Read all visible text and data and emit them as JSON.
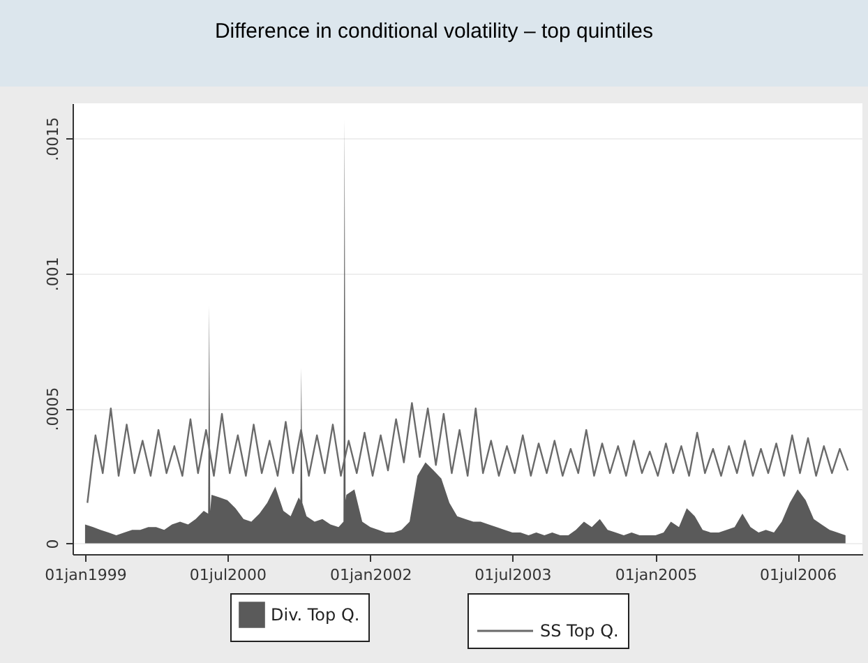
{
  "chart_data": {
    "type": "line",
    "title": "Difference in conditional volatility – top quintiles",
    "xlim": [
      "1998-11-14",
      "2007-03-07"
    ],
    "xticks": [
      {
        "value": "1999-01-01",
        "label": "01jan1999"
      },
      {
        "value": "2000-07-01",
        "label": "01jul2000"
      },
      {
        "value": "2002-01-01",
        "label": "01jan2002"
      },
      {
        "value": "2003-07-01",
        "label": "01jul2003"
      },
      {
        "value": "2005-01-01",
        "label": "01jan2005"
      },
      {
        "value": "2006-07-01",
        "label": "01jul2006"
      }
    ],
    "ylim": [
      -4e-05,
      0.00163
    ],
    "yticks": [
      {
        "value": 0,
        "label": "0"
      },
      {
        "value": 0.0005,
        "label": ".0005"
      },
      {
        "value": 0.001,
        "label": ".001"
      },
      {
        "value": 0.0015,
        "label": ".0015"
      }
    ],
    "grid": "y",
    "legend": "bottom",
    "series": [
      {
        "name": "Div. Top Q.",
        "type": "area",
        "color": "#5a5a5a",
        "x": [
          "1999-01-01",
          "1999-02-01",
          "1999-03-01",
          "1999-04-01",
          "1999-05-01",
          "1999-06-01",
          "1999-07-01",
          "1999-08-01",
          "1999-09-01",
          "1999-10-01",
          "1999-11-01",
          "1999-12-01",
          "2000-01-01",
          "2000-02-01",
          "2000-03-01",
          "2000-04-01",
          "2000-04-18",
          "2000-04-22",
          "2000-04-26",
          "2000-05-01",
          "2000-06-01",
          "2000-07-01",
          "2000-08-01",
          "2000-09-01",
          "2000-10-01",
          "2000-11-01",
          "2000-12-01",
          "2001-01-01",
          "2001-02-01",
          "2001-03-01",
          "2001-04-01",
          "2001-04-07",
          "2001-04-11",
          "2001-04-15",
          "2001-05-01",
          "2001-06-01",
          "2001-07-01",
          "2001-08-01",
          "2001-09-01",
          "2001-09-20",
          "2001-09-24",
          "2001-09-28",
          "2001-10-01",
          "2001-11-01",
          "2001-12-01",
          "2002-01-01",
          "2002-02-01",
          "2002-03-01",
          "2002-04-01",
          "2002-05-01",
          "2002-06-01",
          "2002-07-01",
          "2002-08-01",
          "2002-09-01",
          "2002-10-01",
          "2002-11-01",
          "2002-12-01",
          "2003-01-01",
          "2003-02-01",
          "2003-03-01",
          "2003-04-01",
          "2003-05-01",
          "2003-06-01",
          "2003-07-01",
          "2003-08-01",
          "2003-09-01",
          "2003-10-01",
          "2003-11-01",
          "2003-12-01",
          "2004-01-01",
          "2004-02-01",
          "2004-03-01",
          "2004-04-01",
          "2004-05-01",
          "2004-06-01",
          "2004-07-01",
          "2004-08-01",
          "2004-09-01",
          "2004-10-01",
          "2004-11-01",
          "2004-12-01",
          "2005-01-01",
          "2005-02-01",
          "2005-03-01",
          "2005-04-01",
          "2005-05-01",
          "2005-06-01",
          "2005-07-01",
          "2005-08-01",
          "2005-09-01",
          "2005-10-01",
          "2005-11-01",
          "2005-12-01",
          "2006-01-01",
          "2006-02-01",
          "2006-03-01",
          "2006-04-01",
          "2006-05-01",
          "2006-06-01",
          "2006-07-01",
          "2006-08-01",
          "2006-09-01",
          "2006-10-01",
          "2006-11-01",
          "2006-12-01",
          "2007-01-01"
        ],
        "values": [
          7e-05,
          6e-05,
          5e-05,
          4e-05,
          3e-05,
          4e-05,
          5e-05,
          5e-05,
          6e-05,
          6e-05,
          5e-05,
          7e-05,
          8e-05,
          7e-05,
          9e-05,
          0.00012,
          0.00011,
          0.00088,
          0.00012,
          0.00018,
          0.00017,
          0.00016,
          0.00013,
          9e-05,
          8e-05,
          0.00011,
          0.00015,
          0.00021,
          0.00012,
          0.0001,
          0.00017,
          0.00016,
          0.00065,
          0.00015,
          0.0001,
          8e-05,
          9e-05,
          7e-05,
          6e-05,
          8e-05,
          0.00157,
          0.00016,
          0.00018,
          0.0002,
          8e-05,
          6e-05,
          5e-05,
          4e-05,
          4e-05,
          5e-05,
          8e-05,
          0.00025,
          0.0003,
          0.00027,
          0.00024,
          0.00015,
          0.0001,
          9e-05,
          8e-05,
          8e-05,
          7e-05,
          6e-05,
          5e-05,
          4e-05,
          4e-05,
          3e-05,
          4e-05,
          3e-05,
          4e-05,
          3e-05,
          3e-05,
          5e-05,
          8e-05,
          6e-05,
          9e-05,
          5e-05,
          4e-05,
          3e-05,
          4e-05,
          3e-05,
          3e-05,
          3e-05,
          4e-05,
          8e-05,
          6e-05,
          0.00013,
          0.0001,
          5e-05,
          4e-05,
          4e-05,
          5e-05,
          6e-05,
          0.00011,
          6e-05,
          4e-05,
          5e-05,
          4e-05,
          8e-05,
          0.00015,
          0.0002,
          0.00016,
          9e-05,
          7e-05,
          5e-05,
          4e-05,
          3e-05
        ]
      },
      {
        "name": "SS Top Q.",
        "color": "#6a6a6a",
        "x": [
          "1999-01-10",
          "1999-02-10",
          "1999-03-10",
          "1999-04-10",
          "1999-05-10",
          "1999-06-10",
          "1999-07-10",
          "1999-08-10",
          "1999-09-10",
          "1999-10-10",
          "1999-11-10",
          "1999-12-10",
          "2000-01-10",
          "2000-02-10",
          "2000-03-10",
          "2000-04-10",
          "2000-05-10",
          "2000-06-10",
          "2000-07-10",
          "2000-08-10",
          "2000-09-10",
          "2000-10-10",
          "2000-11-10",
          "2000-12-10",
          "2001-01-10",
          "2001-02-10",
          "2001-03-10",
          "2001-04-10",
          "2001-05-10",
          "2001-06-10",
          "2001-07-10",
          "2001-08-10",
          "2001-09-10",
          "2001-10-10",
          "2001-11-10",
          "2001-12-10",
          "2002-01-10",
          "2002-02-10",
          "2002-03-10",
          "2002-04-10",
          "2002-05-10",
          "2002-06-10",
          "2002-07-10",
          "2002-08-10",
          "2002-09-10",
          "2002-10-10",
          "2002-11-10",
          "2002-12-10",
          "2003-01-10",
          "2003-02-10",
          "2003-03-10",
          "2003-04-10",
          "2003-05-10",
          "2003-06-10",
          "2003-07-10",
          "2003-08-10",
          "2003-09-10",
          "2003-10-10",
          "2003-11-10",
          "2003-12-10",
          "2004-01-10",
          "2004-02-10",
          "2004-03-10",
          "2004-04-10",
          "2004-05-10",
          "2004-06-10",
          "2004-07-10",
          "2004-08-10",
          "2004-09-10",
          "2004-10-10",
          "2004-11-10",
          "2004-12-10",
          "2005-01-10",
          "2005-02-10",
          "2005-03-10",
          "2005-04-10",
          "2005-05-10",
          "2005-06-10",
          "2005-07-10",
          "2005-08-10",
          "2005-09-10",
          "2005-10-10",
          "2005-11-10",
          "2005-12-10",
          "2006-01-10",
          "2006-02-10",
          "2006-03-10",
          "2006-04-10",
          "2006-05-10",
          "2006-06-10",
          "2006-07-10",
          "2006-08-10",
          "2006-09-10",
          "2006-10-10",
          "2006-11-10",
          "2006-12-10",
          "2007-01-10"
        ],
        "values": [
          0.00015,
          0.0004,
          0.00026,
          0.0005,
          0.00025,
          0.00044,
          0.00026,
          0.00038,
          0.00025,
          0.00042,
          0.00026,
          0.00036,
          0.00025,
          0.00046,
          0.00026,
          0.00042,
          0.00025,
          0.00048,
          0.00026,
          0.0004,
          0.00025,
          0.00044,
          0.00026,
          0.00038,
          0.00025,
          0.00045,
          0.00026,
          0.00042,
          0.00025,
          0.0004,
          0.00026,
          0.00044,
          0.00025,
          0.00038,
          0.00026,
          0.00041,
          0.00025,
          0.0004,
          0.00027,
          0.00046,
          0.0003,
          0.00052,
          0.00032,
          0.0005,
          0.00029,
          0.00048,
          0.00026,
          0.00042,
          0.00025,
          0.0005,
          0.00026,
          0.00038,
          0.00025,
          0.00036,
          0.00026,
          0.0004,
          0.00025,
          0.00037,
          0.00026,
          0.00038,
          0.00025,
          0.00035,
          0.00026,
          0.00042,
          0.00025,
          0.00037,
          0.00026,
          0.00036,
          0.00025,
          0.00038,
          0.00026,
          0.00034,
          0.00025,
          0.00037,
          0.00026,
          0.00036,
          0.00025,
          0.00041,
          0.00026,
          0.00035,
          0.00025,
          0.00036,
          0.00026,
          0.00038,
          0.00025,
          0.00035,
          0.00026,
          0.00037,
          0.00025,
          0.0004,
          0.00026,
          0.00039,
          0.00025,
          0.00036,
          0.00026,
          0.00035,
          0.00027
        ]
      }
    ]
  }
}
